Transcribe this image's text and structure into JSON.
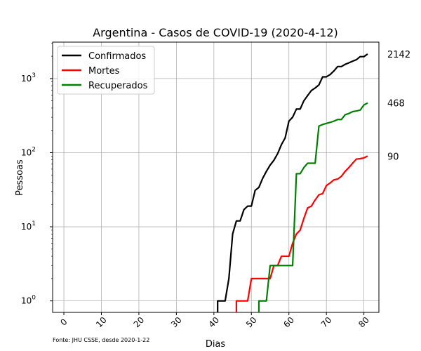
{
  "chart_data": {
    "type": "line",
    "title": "Argentina - Casos de COVID-19 (2020-4-12)",
    "xlabel": "Dias",
    "ylabel": "Pessoas",
    "yscale": "log",
    "xlim": [
      -3,
      84
    ],
    "ylim": [
      0.7,
      3100
    ],
    "xticks": [
      "0",
      "10",
      "20",
      "30",
      "40",
      "50",
      "60",
      "70",
      "80"
    ],
    "xtick_values": [
      0,
      10,
      20,
      30,
      40,
      50,
      60,
      70,
      80
    ],
    "ytick_values": [
      1,
      10,
      100,
      1000
    ],
    "grid": true,
    "legend_position": "top-left",
    "source_note": "Fonte: JHU CSSE, desde 2020-1-22",
    "series": [
      {
        "name": "Confirmados",
        "color": "#000000",
        "end_label": "2142",
        "x": [
          41,
          42,
          43,
          44,
          45,
          46,
          47,
          48,
          49,
          50,
          51,
          52,
          53,
          54,
          55,
          56,
          57,
          58,
          59,
          60,
          61,
          62,
          63,
          64,
          65,
          66,
          67,
          68,
          69,
          70,
          71,
          72,
          73,
          74,
          75,
          76,
          77,
          78,
          79,
          80,
          81
        ],
        "y": [
          1,
          1,
          1,
          2,
          8,
          12,
          12,
          17,
          19,
          19,
          31,
          34,
          45,
          56,
          68,
          79,
          97,
          128,
          158,
          266,
          301,
          387,
          387,
          502,
          589,
          690,
          745,
          820,
          1054,
          1054,
          1133,
          1265,
          1451,
          1451,
          1554,
          1628,
          1715,
          1795,
          1975,
          1975,
          2142
        ]
      },
      {
        "name": "Mortes",
        "color": "#ff0000",
        "end_label": "90",
        "x": [
          46,
          47,
          48,
          49,
          50,
          51,
          52,
          53,
          54,
          55,
          56,
          57,
          58,
          59,
          60,
          61,
          62,
          63,
          64,
          65,
          66,
          67,
          68,
          69,
          70,
          71,
          72,
          73,
          74,
          75,
          76,
          77,
          78,
          79,
          80,
          81
        ],
        "y": [
          1,
          1,
          1,
          1,
          2,
          2,
          2,
          2,
          2,
          2,
          3,
          3,
          4,
          4,
          4,
          6,
          8,
          9,
          13,
          18,
          19,
          23,
          27,
          28,
          36,
          39,
          43,
          44,
          48,
          56,
          63,
          72,
          82,
          83,
          85,
          90
        ]
      },
      {
        "name": "Recuperados",
        "color": "#008000",
        "end_label": "468",
        "x": [
          52,
          53,
          54,
          55,
          56,
          57,
          58,
          59,
          60,
          61,
          62,
          63,
          64,
          65,
          66,
          67,
          68,
          69,
          70,
          71,
          72,
          73,
          74,
          75,
          76,
          77,
          78,
          79,
          80,
          81
        ],
        "y": [
          1,
          1,
          1,
          3,
          3,
          3,
          3,
          3,
          3,
          3,
          52,
          52,
          63,
          72,
          72,
          72,
          228,
          240,
          248,
          256,
          266,
          280,
          280,
          325,
          338,
          358,
          365,
          375,
          440,
          468
        ]
      }
    ]
  }
}
